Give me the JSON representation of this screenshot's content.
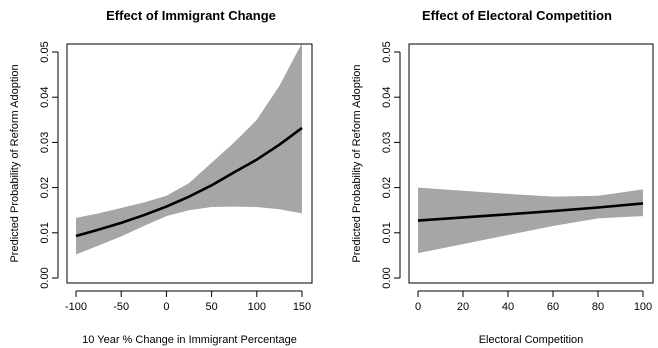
{
  "chart_data": [
    {
      "type": "line",
      "title": "Effect of Immigrant Change",
      "xlabel": "10 Year % Change in Immigrant Percentage",
      "ylabel": "Predicted Probability of Reform Adoption",
      "xlim": [
        -100,
        150
      ],
      "ylim": [
        0,
        0.05
      ],
      "xticks": [
        "-100",
        "-50",
        "0",
        "50",
        "100",
        "150"
      ],
      "yticks": [
        "0.00",
        "0.01",
        "0.02",
        "0.03",
        "0.04",
        "0.05"
      ],
      "grid": false,
      "colors": {
        "line": "#000000",
        "band": "#a6a6a6"
      },
      "series": [
        {
          "x": [
            -100,
            -75,
            -50,
            -25,
            0,
            25,
            50,
            75,
            100,
            125,
            150
          ],
          "y": [
            0.0093,
            0.0107,
            0.0122,
            0.0139,
            0.0158,
            0.018,
            0.0205,
            0.0234,
            0.0262,
            0.0295,
            0.0332
          ],
          "lower": [
            0.0052,
            0.0072,
            0.0092,
            0.0115,
            0.0137,
            0.015,
            0.0157,
            0.0158,
            0.0157,
            0.0152,
            0.0143
          ],
          "upper": [
            0.0133,
            0.0143,
            0.0155,
            0.0167,
            0.0182,
            0.021,
            0.0255,
            0.03,
            0.035,
            0.0425,
            0.052
          ]
        }
      ]
    },
    {
      "type": "line",
      "title": "Effect of Electoral Competition",
      "xlabel": "Electoral Competition",
      "ylabel": "Predicted Probability of Reform Adoption",
      "xlim": [
        0,
        100
      ],
      "ylim": [
        0,
        0.05
      ],
      "xticks": [
        "0",
        "20",
        "40",
        "60",
        "80",
        "100"
      ],
      "yticks": [
        "0.00",
        "0.01",
        "0.02",
        "0.03",
        "0.04",
        "0.05"
      ],
      "grid": false,
      "colors": {
        "line": "#000000",
        "band": "#a6a6a6"
      },
      "series": [
        {
          "x": [
            0,
            20,
            40,
            60,
            80,
            100
          ],
          "y": [
            0.0127,
            0.0134,
            0.0141,
            0.0148,
            0.0156,
            0.0165
          ],
          "lower": [
            0.0055,
            0.0075,
            0.0095,
            0.0115,
            0.0132,
            0.0137
          ],
          "upper": [
            0.02,
            0.0193,
            0.0186,
            0.018,
            0.0182,
            0.0196
          ]
        }
      ]
    }
  ]
}
